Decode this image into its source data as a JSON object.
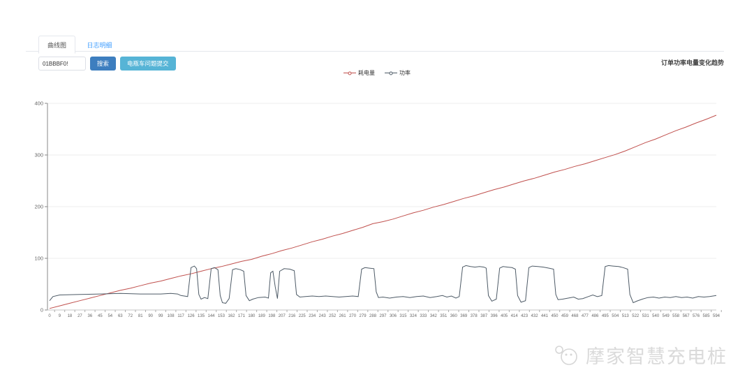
{
  "tabs": [
    {
      "label": "曲线图",
      "active": true
    },
    {
      "label": "日志明细",
      "active": false
    }
  ],
  "controls": {
    "device_input_value": "01BBBF0!",
    "search_button": "搜索",
    "submit_button": "电瓶车问题提交"
  },
  "header": {
    "chart_title": "订单功率电量变化趋势"
  },
  "watermark": {
    "text": "摩家智慧充电桩"
  },
  "colors": {
    "primary_button": "#3d7ebf",
    "info_button": "#56b4d6",
    "tab_link": "#409eff",
    "energy_series": "#c0504d",
    "power_series": "#4d5a66",
    "grid": "#ededed",
    "axis": "#888888",
    "watermark": "#dadada"
  },
  "chart_data": {
    "type": "line",
    "title": "订单功率电量变化趋势",
    "xlabel": "",
    "ylabel": "",
    "xlim": [
      0,
      594
    ],
    "ylim": [
      0,
      400
    ],
    "grid": true,
    "x_tick_step": 9,
    "y_ticks": [
      0,
      100,
      200,
      300,
      400
    ],
    "x_ticks": [
      0,
      9,
      18,
      27,
      36,
      45,
      54,
      63,
      72,
      81,
      90,
      99,
      108,
      117,
      126,
      135,
      144,
      153,
      162,
      171,
      180,
      189,
      198,
      207,
      216,
      225,
      234,
      243,
      252,
      261,
      270,
      279,
      288,
      297,
      306,
      315,
      324,
      333,
      342,
      351,
      360,
      369,
      378,
      387,
      396,
      405,
      414,
      423,
      432,
      441,
      450,
      459,
      468,
      477,
      486,
      495,
      504,
      513,
      522,
      531,
      540,
      549,
      558,
      567,
      576,
      585,
      594
    ],
    "legend": {
      "position": "top",
      "items": [
        "耗电量",
        "功率"
      ]
    },
    "series": [
      {
        "name": "耗电量",
        "color": "#c0504d",
        "points": [
          [
            0,
            3
          ],
          [
            9,
            8
          ],
          [
            18,
            13
          ],
          [
            27,
            18
          ],
          [
            36,
            23
          ],
          [
            45,
            28
          ],
          [
            54,
            33
          ],
          [
            63,
            38
          ],
          [
            72,
            42
          ],
          [
            81,
            47
          ],
          [
            90,
            52
          ],
          [
            99,
            56
          ],
          [
            108,
            61
          ],
          [
            117,
            66
          ],
          [
            126,
            70
          ],
          [
            135,
            75
          ],
          [
            144,
            80
          ],
          [
            153,
            84
          ],
          [
            162,
            89
          ],
          [
            171,
            94
          ],
          [
            180,
            98
          ],
          [
            189,
            104
          ],
          [
            198,
            109
          ],
          [
            207,
            115
          ],
          [
            216,
            120
          ],
          [
            225,
            126
          ],
          [
            234,
            132
          ],
          [
            243,
            137
          ],
          [
            252,
            143
          ],
          [
            261,
            148
          ],
          [
            270,
            154
          ],
          [
            279,
            160
          ],
          [
            288,
            167
          ],
          [
            297,
            171
          ],
          [
            306,
            176
          ],
          [
            315,
            182
          ],
          [
            324,
            188
          ],
          [
            333,
            193
          ],
          [
            342,
            199
          ],
          [
            351,
            204
          ],
          [
            360,
            210
          ],
          [
            369,
            216
          ],
          [
            378,
            221
          ],
          [
            387,
            227
          ],
          [
            396,
            233
          ],
          [
            405,
            238
          ],
          [
            414,
            244
          ],
          [
            423,
            250
          ],
          [
            432,
            255
          ],
          [
            441,
            261
          ],
          [
            450,
            267
          ],
          [
            459,
            272
          ],
          [
            468,
            278
          ],
          [
            477,
            283
          ],
          [
            486,
            289
          ],
          [
            495,
            295
          ],
          [
            504,
            301
          ],
          [
            513,
            308
          ],
          [
            522,
            316
          ],
          [
            531,
            324
          ],
          [
            540,
            331
          ],
          [
            549,
            339
          ],
          [
            558,
            347
          ],
          [
            567,
            354
          ],
          [
            576,
            362
          ],
          [
            585,
            369
          ],
          [
            594,
            377
          ]
        ]
      },
      {
        "name": "功率",
        "color": "#4d5a66",
        "points": [
          [
            0,
            18
          ],
          [
            3,
            26
          ],
          [
            9,
            29
          ],
          [
            27,
            30
          ],
          [
            45,
            31
          ],
          [
            63,
            32
          ],
          [
            81,
            31
          ],
          [
            99,
            31
          ],
          [
            108,
            32
          ],
          [
            114,
            31
          ],
          [
            117,
            28
          ],
          [
            123,
            26
          ],
          [
            126,
            82
          ],
          [
            129,
            85
          ],
          [
            131,
            80
          ],
          [
            133,
            30
          ],
          [
            135,
            21
          ],
          [
            138,
            24
          ],
          [
            141,
            22
          ],
          [
            144,
            80
          ],
          [
            147,
            82
          ],
          [
            150,
            78
          ],
          [
            152,
            28
          ],
          [
            154,
            14
          ],
          [
            157,
            13
          ],
          [
            160,
            22
          ],
          [
            163,
            78
          ],
          [
            166,
            80
          ],
          [
            170,
            78
          ],
          [
            173,
            75
          ],
          [
            175,
            28
          ],
          [
            178,
            18
          ],
          [
            181,
            21
          ],
          [
            186,
            24
          ],
          [
            192,
            25
          ],
          [
            195,
            23
          ],
          [
            197,
            72
          ],
          [
            199,
            75
          ],
          [
            201,
            45
          ],
          [
            203,
            22
          ],
          [
            205,
            75
          ],
          [
            209,
            80
          ],
          [
            214,
            79
          ],
          [
            218,
            76
          ],
          [
            220,
            30
          ],
          [
            223,
            25
          ],
          [
            228,
            26
          ],
          [
            234,
            27
          ],
          [
            240,
            26
          ],
          [
            246,
            27
          ],
          [
            252,
            26
          ],
          [
            258,
            25
          ],
          [
            264,
            26
          ],
          [
            270,
            27
          ],
          [
            275,
            26
          ],
          [
            278,
            79
          ],
          [
            281,
            82
          ],
          [
            285,
            81
          ],
          [
            289,
            80
          ],
          [
            291,
            35
          ],
          [
            293,
            24
          ],
          [
            297,
            25
          ],
          [
            303,
            23
          ],
          [
            309,
            25
          ],
          [
            315,
            26
          ],
          [
            321,
            24
          ],
          [
            327,
            26
          ],
          [
            333,
            27
          ],
          [
            339,
            24
          ],
          [
            345,
            26
          ],
          [
            350,
            28
          ],
          [
            354,
            25
          ],
          [
            358,
            27
          ],
          [
            362,
            23
          ],
          [
            365,
            26
          ],
          [
            368,
            83
          ],
          [
            371,
            86
          ],
          [
            375,
            84
          ],
          [
            379,
            83
          ],
          [
            383,
            84
          ],
          [
            387,
            83
          ],
          [
            389,
            81
          ],
          [
            391,
            28
          ],
          [
            394,
            17
          ],
          [
            398,
            21
          ],
          [
            401,
            81
          ],
          [
            404,
            84
          ],
          [
            408,
            83
          ],
          [
            412,
            82
          ],
          [
            415,
            79
          ],
          [
            417,
            28
          ],
          [
            420,
            15
          ],
          [
            424,
            18
          ],
          [
            427,
            82
          ],
          [
            430,
            85
          ],
          [
            435,
            84
          ],
          [
            440,
            83
          ],
          [
            445,
            81
          ],
          [
            449,
            79
          ],
          [
            451,
            30
          ],
          [
            453,
            20
          ],
          [
            457,
            21
          ],
          [
            462,
            23
          ],
          [
            467,
            25
          ],
          [
            471,
            21
          ],
          [
            475,
            22
          ],
          [
            480,
            26
          ],
          [
            484,
            29
          ],
          [
            488,
            26
          ],
          [
            492,
            28
          ],
          [
            495,
            84
          ],
          [
            498,
            86
          ],
          [
            502,
            85
          ],
          [
            507,
            84
          ],
          [
            511,
            82
          ],
          [
            515,
            79
          ],
          [
            517,
            30
          ],
          [
            520,
            14
          ],
          [
            523,
            17
          ],
          [
            528,
            21
          ],
          [
            533,
            24
          ],
          [
            538,
            25
          ],
          [
            543,
            23
          ],
          [
            548,
            25
          ],
          [
            553,
            24
          ],
          [
            558,
            26
          ],
          [
            563,
            24
          ],
          [
            568,
            25
          ],
          [
            573,
            23
          ],
          [
            578,
            26
          ],
          [
            583,
            25
          ],
          [
            588,
            26
          ],
          [
            594,
            28
          ]
        ]
      }
    ]
  }
}
